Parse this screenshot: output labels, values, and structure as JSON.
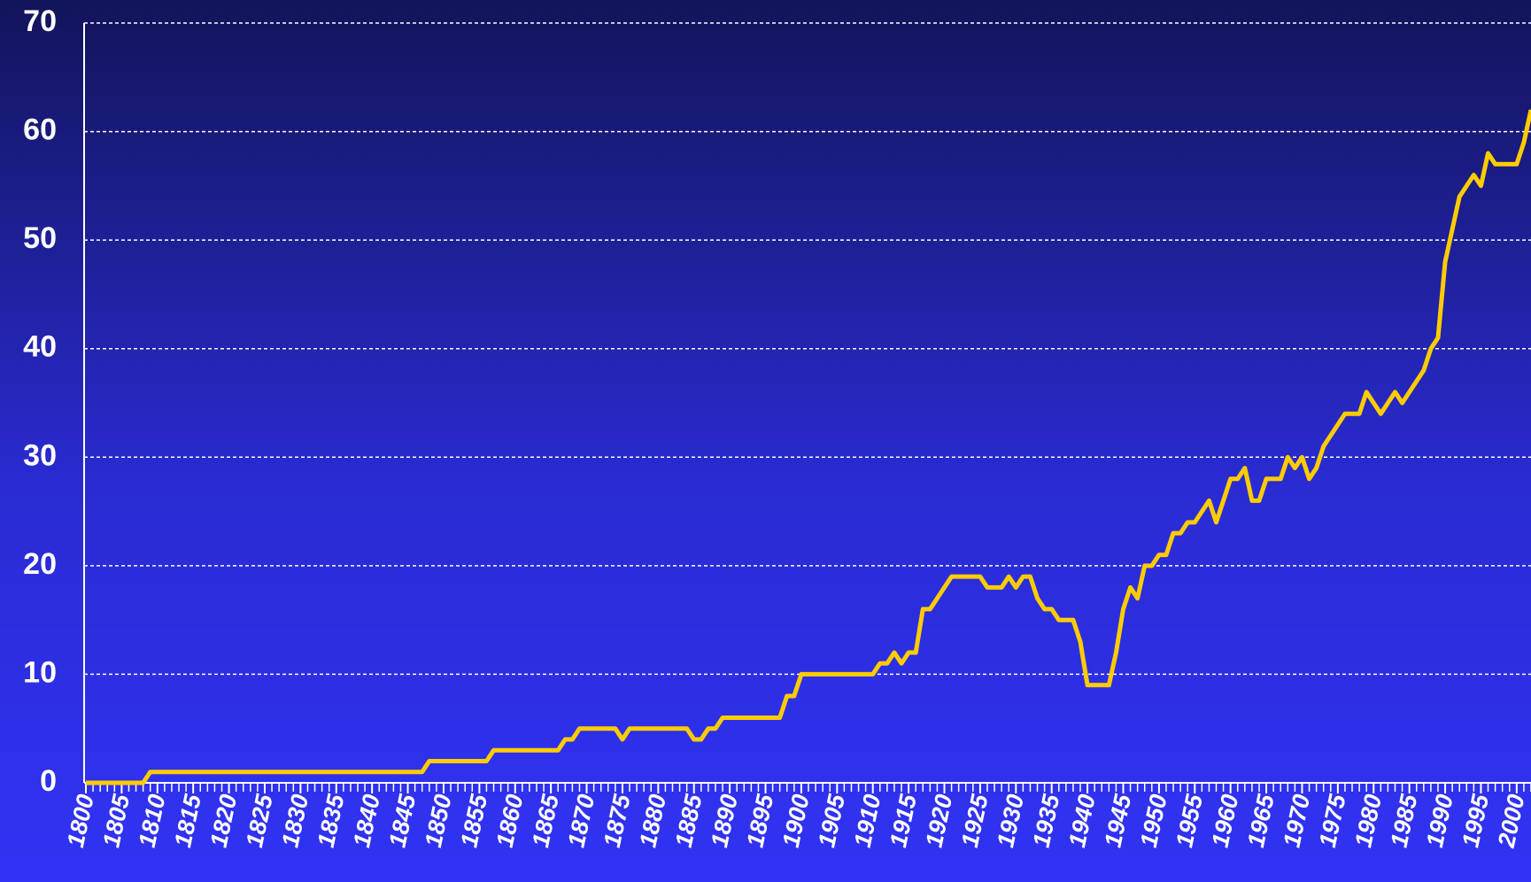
{
  "chart_data": {
    "type": "line",
    "x": [
      1800,
      1801,
      1802,
      1803,
      1804,
      1805,
      1806,
      1807,
      1808,
      1809,
      1810,
      1811,
      1812,
      1813,
      1814,
      1815,
      1816,
      1817,
      1818,
      1819,
      1820,
      1821,
      1822,
      1823,
      1824,
      1825,
      1826,
      1827,
      1828,
      1829,
      1830,
      1831,
      1832,
      1833,
      1834,
      1835,
      1836,
      1837,
      1838,
      1839,
      1840,
      1841,
      1842,
      1843,
      1844,
      1845,
      1846,
      1847,
      1848,
      1849,
      1850,
      1851,
      1852,
      1853,
      1854,
      1855,
      1856,
      1857,
      1858,
      1859,
      1860,
      1861,
      1862,
      1863,
      1864,
      1865,
      1866,
      1867,
      1868,
      1869,
      1870,
      1871,
      1872,
      1873,
      1874,
      1875,
      1876,
      1877,
      1878,
      1879,
      1880,
      1881,
      1882,
      1883,
      1884,
      1885,
      1886,
      1887,
      1888,
      1889,
      1890,
      1891,
      1892,
      1893,
      1894,
      1895,
      1896,
      1897,
      1898,
      1899,
      1900,
      1901,
      1902,
      1903,
      1904,
      1905,
      1906,
      1907,
      1908,
      1909,
      1910,
      1911,
      1912,
      1913,
      1914,
      1915,
      1916,
      1917,
      1918,
      1919,
      1920,
      1921,
      1922,
      1923,
      1924,
      1925,
      1926,
      1927,
      1928,
      1929,
      1930,
      1931,
      1932,
      1933,
      1934,
      1935,
      1936,
      1937,
      1938,
      1939,
      1940,
      1941,
      1942,
      1943,
      1944,
      1945,
      1946,
      1947,
      1948,
      1949,
      1950,
      1951,
      1952,
      1953,
      1954,
      1955,
      1956,
      1957,
      1958,
      1959,
      1960,
      1961,
      1962,
      1963,
      1964,
      1965,
      1966,
      1967,
      1968,
      1969,
      1970,
      1971,
      1972,
      1973,
      1974,
      1975,
      1976,
      1977,
      1978,
      1979,
      1980,
      1981,
      1982,
      1983,
      1984,
      1985,
      1986,
      1987,
      1988,
      1989,
      1990,
      1991,
      1992,
      1993,
      1994,
      1995,
      1996,
      1997,
      1998,
      1999,
      2000,
      2001,
      2002
    ],
    "series": [
      {
        "color": "#ffcc00",
        "values": [
          0,
          0,
          0,
          0,
          0,
          0,
          0,
          0,
          0,
          1,
          1,
          1,
          1,
          1,
          1,
          1,
          1,
          1,
          1,
          1,
          1,
          1,
          1,
          1,
          1,
          1,
          1,
          1,
          1,
          1,
          1,
          1,
          1,
          1,
          1,
          1,
          1,
          1,
          1,
          1,
          1,
          1,
          1,
          1,
          1,
          1,
          1,
          1,
          2,
          2,
          2,
          2,
          2,
          2,
          2,
          2,
          2,
          3,
          3,
          3,
          3,
          3,
          3,
          3,
          3,
          3,
          3,
          4,
          4,
          5,
          5,
          5,
          5,
          5,
          5,
          4,
          5,
          5,
          5,
          5,
          5,
          5,
          5,
          5,
          5,
          4,
          4,
          5,
          5,
          6,
          6,
          6,
          6,
          6,
          6,
          6,
          6,
          6,
          8,
          8,
          10,
          10,
          10,
          10,
          10,
          10,
          10,
          10,
          10,
          10,
          10,
          11,
          11,
          12,
          11,
          12,
          12,
          16,
          16,
          17,
          18,
          19,
          19,
          19,
          19,
          19,
          18,
          18,
          18,
          19,
          18,
          19,
          19,
          17,
          16,
          16,
          15,
          15,
          15,
          13,
          9,
          9,
          9,
          9,
          12,
          16,
          18,
          17,
          20,
          20,
          21,
          21,
          23,
          23,
          24,
          24,
          25,
          26,
          24,
          26,
          28,
          28,
          29,
          26,
          26,
          28,
          28,
          28,
          30,
          29,
          30,
          28,
          29,
          31,
          32,
          33,
          34,
          34,
          34,
          36,
          35,
          34,
          35,
          36,
          35,
          36,
          37,
          38,
          40,
          41,
          48,
          51,
          54,
          55,
          56,
          55,
          58,
          57,
          57,
          57,
          57,
          59,
          62
        ]
      }
    ],
    "xlim": [
      1800,
      2002
    ],
    "xticks": [
      1800,
      1805,
      1810,
      1815,
      1820,
      1825,
      1830,
      1835,
      1840,
      1845,
      1850,
      1855,
      1860,
      1865,
      1870,
      1875,
      1880,
      1885,
      1890,
      1895,
      1900,
      1905,
      1910,
      1915,
      1920,
      1925,
      1930,
      1935,
      1940,
      1945,
      1950,
      1955,
      1960,
      1965,
      1970,
      1975,
      1980,
      1985,
      1990,
      1995,
      2000
    ],
    "ylim": [
      0,
      70
    ],
    "yticks": [
      0,
      10,
      20,
      30,
      40,
      50,
      60,
      70
    ],
    "grid": true
  }
}
